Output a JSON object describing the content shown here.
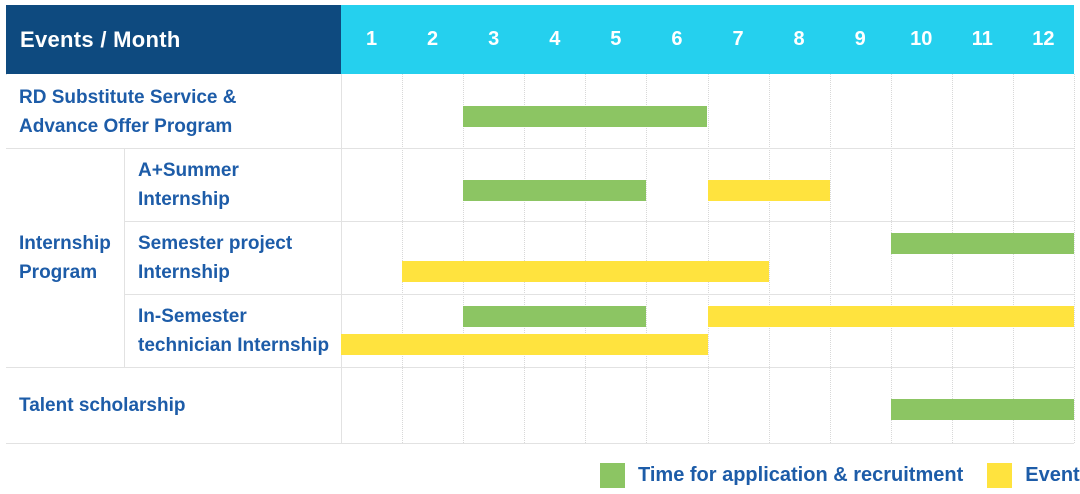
{
  "header": {
    "label": "Events / Month",
    "months": [
      "1",
      "2",
      "3",
      "4",
      "5",
      "6",
      "7",
      "8",
      "9",
      "10",
      "11",
      "12"
    ]
  },
  "legend": {
    "items": [
      {
        "label": "Time for application & recruitment",
        "color": "green"
      },
      {
        "label": "Events",
        "color": "yellow"
      }
    ]
  },
  "colors": {
    "header_bg": "#0E4A7F",
    "months_bg": "#25D0EE",
    "header_text": "#FFFFFF",
    "green": "#8CC563",
    "yellow": "#FFE33E",
    "label_text": "#1D5CA8",
    "grid_line": "#E2E2E2",
    "column_dotted": "#D8D8D8"
  },
  "chart_data": {
    "type": "gantt",
    "title": "Events / Month",
    "x_axis": {
      "unit": "month",
      "ticks": [
        1,
        2,
        3,
        4,
        5,
        6,
        7,
        8,
        9,
        10,
        11,
        12
      ],
      "range": [
        1,
        12
      ]
    },
    "legend": {
      "green": "Time for application & recruitment",
      "yellow": "Events"
    },
    "group_cell": {
      "label": "Internship\nProgram",
      "spans_rows": [
        1,
        2,
        3
      ]
    },
    "rows": [
      {
        "group": "",
        "label": "RD Substitute Service &\nAdvance Offer Program",
        "bars": [
          {
            "series": "Time for application & recruitment",
            "color": "green",
            "start_month": 3,
            "end_month": 6,
            "lane": "mid"
          }
        ]
      },
      {
        "group": "Internship Program",
        "label": "A+Summer\nInternship",
        "bars": [
          {
            "series": "Time for application & recruitment",
            "color": "green",
            "start_month": 3,
            "end_month": 5,
            "lane": "mid"
          },
          {
            "series": "Events",
            "color": "yellow",
            "start_month": 7,
            "end_month": 8,
            "lane": "mid"
          }
        ]
      },
      {
        "group": "Internship Program",
        "label": "Semester project\nInternship",
        "bars": [
          {
            "series": "Time for application & recruitment",
            "color": "green",
            "start_month": 10,
            "end_month": 12,
            "lane": "top"
          },
          {
            "series": "Events",
            "color": "yellow",
            "start_month": 2,
            "end_month": 7,
            "lane": "bottom"
          }
        ]
      },
      {
        "group": "Internship Program",
        "label": "In-Semester\ntechnician Internship",
        "bars": [
          {
            "series": "Time for application & recruitment",
            "color": "green",
            "start_month": 3,
            "end_month": 5,
            "lane": "top"
          },
          {
            "series": "Events",
            "color": "yellow",
            "start_month": 7,
            "end_month": 12,
            "lane": "top"
          },
          {
            "series": "Events",
            "color": "yellow",
            "start_month": 1,
            "end_month": 6,
            "lane": "bottom"
          }
        ]
      },
      {
        "group": "",
        "label": "Talent scholarship",
        "bars": [
          {
            "series": "Time for application & recruitment",
            "color": "green",
            "start_month": 10,
            "end_month": 12,
            "lane": "mid"
          }
        ]
      }
    ]
  }
}
